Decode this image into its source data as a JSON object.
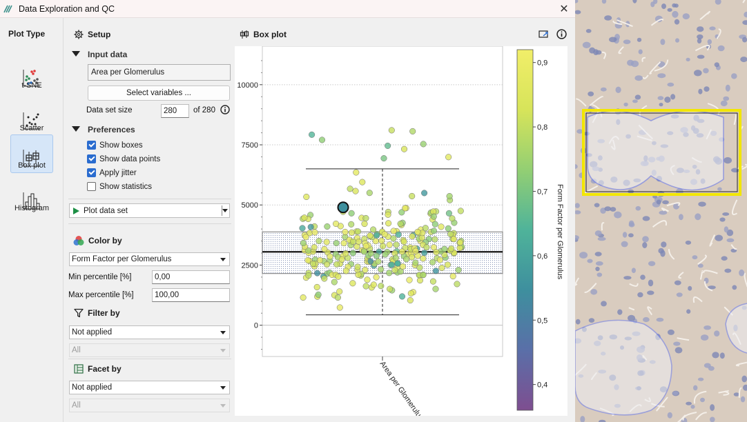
{
  "window": {
    "title": "Data Exploration and QC",
    "close_glyph": "✕"
  },
  "plot_type": {
    "header": "Plot Type",
    "items": [
      {
        "label": "t-SNE",
        "icon": "tsne-icon"
      },
      {
        "label": "Scatter",
        "icon": "scatter-icon"
      },
      {
        "label": "Box plot",
        "icon": "boxplot-icon",
        "active": true
      },
      {
        "label": "Histogram",
        "icon": "histogram-icon"
      }
    ]
  },
  "setup": {
    "title": "Setup",
    "input_data": {
      "label": "Input data",
      "selected_variable": "Area per Glomerulus",
      "select_button": "Select variables ...",
      "dataset_size_label": "Data set size",
      "dataset_size_value": "280",
      "dataset_size_total": "of 280"
    },
    "preferences": {
      "label": "Preferences",
      "options": [
        {
          "label": "Show boxes",
          "checked": true
        },
        {
          "label": "Show data points",
          "checked": true
        },
        {
          "label": "Apply jitter",
          "checked": true
        },
        {
          "label": "Show statistics",
          "checked": false
        }
      ]
    },
    "plot_button": "Plot data set",
    "color_by": {
      "label": "Color by",
      "value": "Form Factor per Glomerulus",
      "min_label": "Min percentile [%]",
      "min_value": "0,00",
      "max_label": "Max percentile [%]",
      "max_value": "100,00"
    },
    "filter_by": {
      "label": "Filter by",
      "value": "Not applied",
      "sub_value": "All"
    },
    "facet_by": {
      "label": "Facet by",
      "value": "Not applied",
      "sub_value": "All"
    }
  },
  "plot": {
    "title": "Box plot"
  },
  "chart_data": {
    "type": "box",
    "category": "Area per Glomerulus",
    "y_ticks": [
      "0",
      "2500",
      "5000",
      "7500",
      "10000"
    ],
    "ylim": [
      -1300,
      11600
    ],
    "box": {
      "whisker_low": 430,
      "q1": 2150,
      "median": 3050,
      "q3": 3880,
      "whisker_high": 6500
    },
    "highlighted_point": {
      "y": 4900,
      "value": 0.55
    },
    "colorbar": {
      "label": "Form Factor per Glomerulus",
      "ticks": [
        "0,4",
        "0,5",
        "0,6",
        "0,7",
        "0,8",
        "0,9"
      ],
      "range": [
        0.36,
        0.92
      ],
      "colors": [
        "#7e4e90",
        "#5a6fa8",
        "#3e8f9e",
        "#4fb39a",
        "#93cf73",
        "#d7e45a",
        "#f1ee69"
      ]
    },
    "grid": true
  },
  "colors": {
    "accent": "#2a6ccf",
    "active_tab": "#d6e6f8",
    "highlight_frame": "#f2e600",
    "roi_outline": "#6c7df0"
  }
}
